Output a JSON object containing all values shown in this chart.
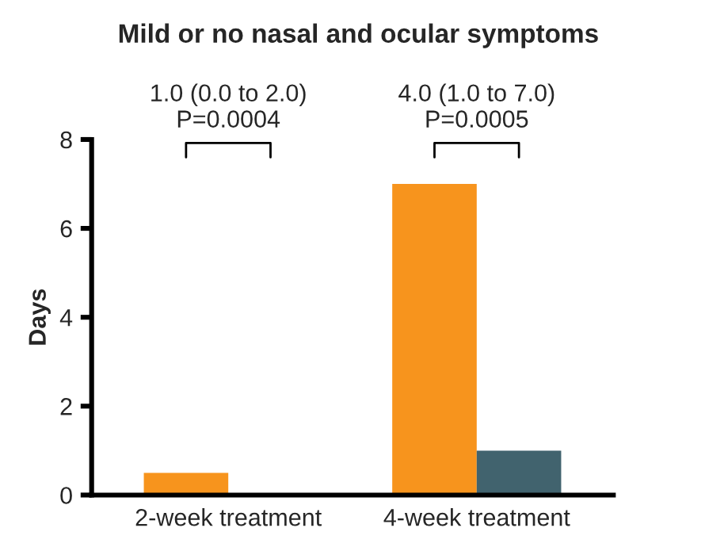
{
  "chart_data": {
    "type": "bar",
    "title": "Mild or no nasal and ocular symptoms",
    "ylabel": "Days",
    "categories": [
      "2-week treatment",
      "4-week treatment"
    ],
    "series": [
      {
        "color": "#f7941d",
        "values": [
          0.5,
          7.0
        ]
      },
      {
        "color": "#41636e",
        "values": [
          null,
          1.0
        ]
      }
    ],
    "ylim": [
      0,
      8
    ],
    "yticks": [
      0,
      2,
      4,
      6,
      8
    ],
    "grid": false,
    "legend": false,
    "annotations": [
      "1.0 (0.0 to 2.0)\nP=0.0004",
      "4.0 (1.0 to 7.0)\nP=0.0005"
    ]
  }
}
